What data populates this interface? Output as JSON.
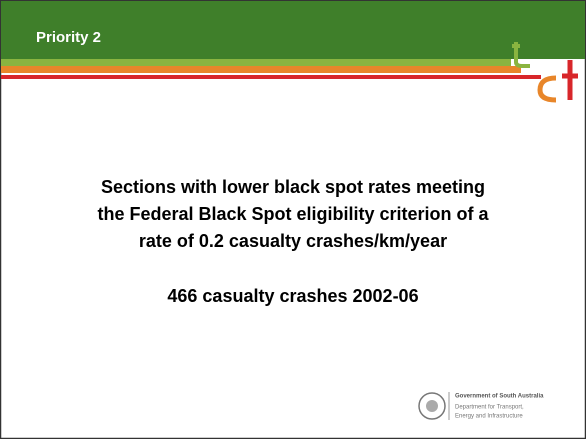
{
  "header": {
    "title": "Priority 2"
  },
  "body": {
    "lines": [
      "Sections with lower black spot rates meeting",
      "the Federal Black Spot eligibility criterion of a",
      "rate of 0.2 casualty crashes/km/year"
    ],
    "summary": "466 casualty crashes 2002-06"
  },
  "footer": {
    "logo_lines": [
      "Government of South Australia",
      "Department for Transport,",
      "Energy and Infrastructure"
    ]
  }
}
